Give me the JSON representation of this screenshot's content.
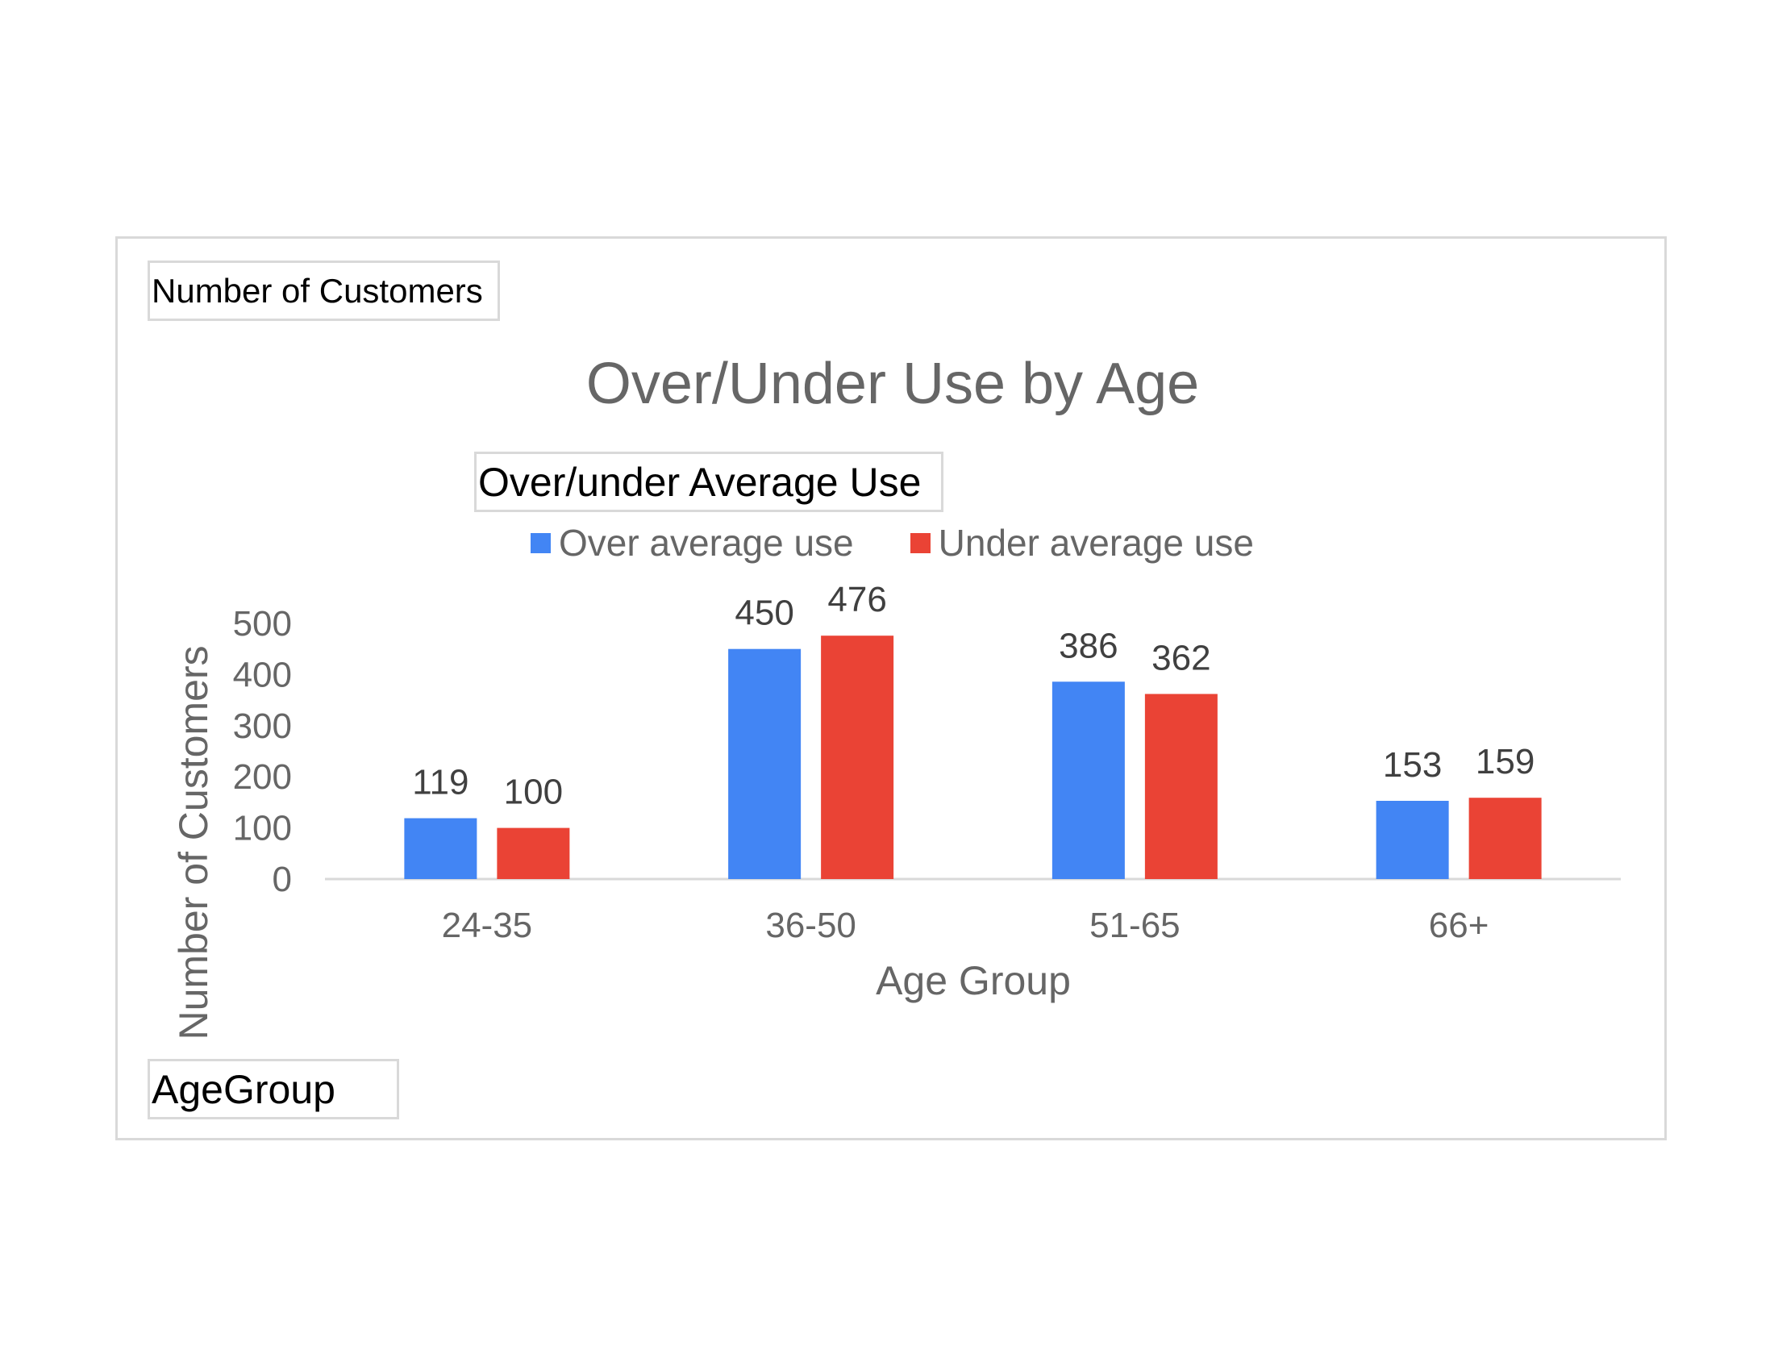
{
  "pivot_fields": {
    "y_field": "Number of Customers",
    "legend_field": "Over/under Average Use",
    "x_field": "AgeGroup"
  },
  "chart_data": {
    "type": "bar",
    "title": "Over/Under Use by Age",
    "xlabel": "Age Group",
    "ylabel": "Number of Customers",
    "categories": [
      "24-35",
      "36-50",
      "51-65",
      "66+"
    ],
    "series": [
      {
        "name": "Over average use",
        "color": "#4285f4",
        "values": [
          119,
          450,
          386,
          153
        ]
      },
      {
        "name": "Under average use",
        "color": "#ea4335",
        "values": [
          100,
          476,
          362,
          159
        ]
      }
    ],
    "ylim": [
      0,
      500
    ],
    "yticks": [
      0,
      100,
      200,
      300,
      400,
      500
    ],
    "grid": false,
    "data_labels": true,
    "legend_position": "top"
  }
}
